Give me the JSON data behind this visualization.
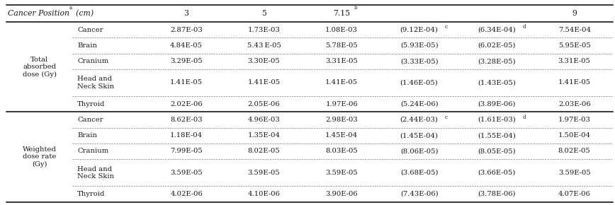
{
  "sections": [
    {
      "section_label": "Total\nabsorbed\ndose (Gy)",
      "rows": [
        [
          "Cancer",
          "2.87E-03",
          "1.73E-03",
          "1.08E-03",
          "(9.12E-04)",
          "c",
          "(6.34E-04)",
          "d",
          "7.54E-04"
        ],
        [
          "Brain",
          "4.84E-05",
          "5.43 E-05",
          "5.78E-05",
          "(5.93E-05)",
          "",
          "(6.02E-05)",
          "",
          "5.95E-05"
        ],
        [
          "Cranium",
          "3.29E-05",
          "3.30E-05",
          "3.31E-05",
          "(3.33E-05)",
          "",
          "(3.28E-05)",
          "",
          "3.31E-05"
        ],
        [
          "Head and\nNeck Skin",
          "1.41E-05",
          "1.41E-05",
          "1.41E-05",
          "(1.46E-05)",
          "",
          "(1.43E-05)",
          "",
          "1.41E-05"
        ],
        [
          "Thyroid",
          "2.02E-06",
          "2.05E-06",
          "1.97E-06",
          "(5.24E-06)",
          "",
          "(3.89E-06)",
          "",
          "2.03E-06"
        ]
      ]
    },
    {
      "section_label": "Weighted\ndose rate\n(Gy)",
      "rows": [
        [
          "Cancer",
          "8.62E-03",
          "4.96E-03",
          "2.98E-03",
          "(2.44E-03)",
          "c",
          "(1.61E-03)",
          "d",
          "1.97E-03"
        ],
        [
          "Brain",
          "1.18E-04",
          "1.35E-04",
          "1.45E-04",
          "(1.45E-04)",
          "",
          "(1.55E-04)",
          "",
          "1.50E-04"
        ],
        [
          "Cranium",
          "7.99E-05",
          "8.02E-05",
          "8.03E-05",
          "(8.06E-05)",
          "",
          "(8.05E-05)",
          "",
          "8.02E-05"
        ],
        [
          "Head and\nNeck Skin",
          "3.59E-05",
          "3.59E-05",
          "3.59E-05",
          "(3.68E-05)",
          "",
          "(3.66E-05)",
          "",
          "3.59E-05"
        ],
        [
          "Thyroid",
          "4.02E-06",
          "4.10E-06",
          "3.90E-06",
          "(7.43E-06)",
          "",
          "(3.78E-06)",
          "",
          "4.07E-06"
        ]
      ]
    }
  ],
  "col_headers": [
    "3",
    "5",
    "7.15",
    "",
    "",
    "9"
  ],
  "col_header_sups": [
    "",
    "",
    "b",
    "",
    "",
    ""
  ],
  "bg_color": "#ffffff",
  "text_color": "#1a1a1a",
  "font_size": 7.2,
  "header_font_size": 7.8,
  "sec_font_size": 7.2,
  "sup_font_size": 5.2
}
